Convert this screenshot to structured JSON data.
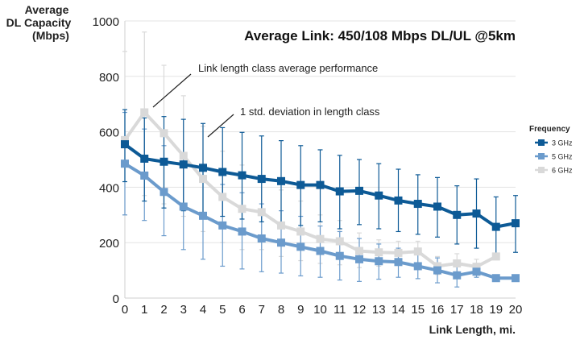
{
  "chart_data": {
    "type": "line",
    "title": "Average Link: 450/108 Mbps DL/UL @5km",
    "xlabel": "Link Length, mi.",
    "ylabel": [
      "Average",
      "DL Capacity",
      "(Mbps)"
    ],
    "xlim": [
      0,
      20
    ],
    "ylim": [
      0,
      1000
    ],
    "x_ticks": [
      0,
      1,
      2,
      3,
      4,
      5,
      6,
      7,
      8,
      9,
      10,
      11,
      12,
      13,
      14,
      15,
      16,
      17,
      18,
      19,
      20
    ],
    "y_ticks": [
      0,
      200,
      400,
      600,
      800,
      1000
    ],
    "grid": "horizontal",
    "legend": {
      "title": "Frequency",
      "placement": "right"
    },
    "annotations": [
      {
        "text": "Link length class average performance"
      },
      {
        "text": "1 std. deviation in length class"
      }
    ],
    "series": [
      {
        "name": "3 GHz",
        "color": "#0d5a96",
        "x": [
          0,
          1,
          2,
          3,
          4,
          5,
          6,
          7,
          8,
          9,
          10,
          11,
          12,
          13,
          14,
          15,
          16,
          17,
          18,
          19,
          20
        ],
        "values": [
          555,
          503,
          492,
          482,
          470,
          455,
          443,
          430,
          422,
          408,
          408,
          385,
          387,
          370,
          352,
          340,
          330,
          300,
          305,
          257,
          270
        ],
        "err_upper": [
          680,
          650,
          655,
          645,
          630,
          615,
          598,
          585,
          568,
          550,
          535,
          515,
          500,
          485,
          465,
          445,
          435,
          405,
          430,
          365,
          370
        ],
        "err_lower": [
          420,
          350,
          325,
          315,
          305,
          295,
          285,
          275,
          270,
          262,
          275,
          250,
          265,
          250,
          240,
          230,
          220,
          195,
          180,
          150,
          165
        ]
      },
      {
        "name": "5 GHz",
        "color": "#6b9bcc",
        "x": [
          0,
          1,
          2,
          3,
          4,
          5,
          6,
          7,
          8,
          9,
          10,
          11,
          12,
          13,
          14,
          15,
          16,
          17,
          18,
          19,
          20
        ],
        "values": [
          485,
          442,
          383,
          330,
          297,
          262,
          240,
          215,
          200,
          185,
          170,
          152,
          140,
          133,
          130,
          115,
          100,
          82,
          95,
          72,
          72
        ],
        "err_upper": [
          670,
          610,
          550,
          495,
          460,
          410,
          380,
          340,
          315,
          295,
          260,
          240,
          215,
          195,
          180,
          165,
          145,
          125,
          115,
          null,
          null
        ],
        "err_lower": [
          300,
          280,
          225,
          175,
          140,
          115,
          105,
          95,
          90,
          80,
          75,
          65,
          60,
          68,
          75,
          70,
          55,
          40,
          75,
          null,
          null
        ]
      },
      {
        "name": "6 GHz",
        "color": "#d9d9d9",
        "x": [
          0,
          1,
          2,
          3,
          4,
          5,
          6,
          7,
          8,
          9,
          10,
          11,
          12,
          13,
          14,
          15,
          16,
          17,
          18,
          19
        ],
        "values": [
          570,
          670,
          595,
          513,
          430,
          365,
          322,
          310,
          262,
          240,
          213,
          205,
          170,
          165,
          163,
          168,
          115,
          125,
          113,
          150
        ],
        "err_upper": [
          890,
          960,
          840,
          730,
          620,
          530,
          480,
          420,
          390,
          350,
          300,
          280,
          235,
          210,
          205,
          205,
          150,
          160,
          140,
          null
        ],
        "err_lower": [
          300,
          370,
          340,
          295,
          240,
          200,
          175,
          175,
          150,
          135,
          125,
          120,
          110,
          115,
          125,
          125,
          85,
          95,
          85,
          null
        ]
      }
    ]
  }
}
